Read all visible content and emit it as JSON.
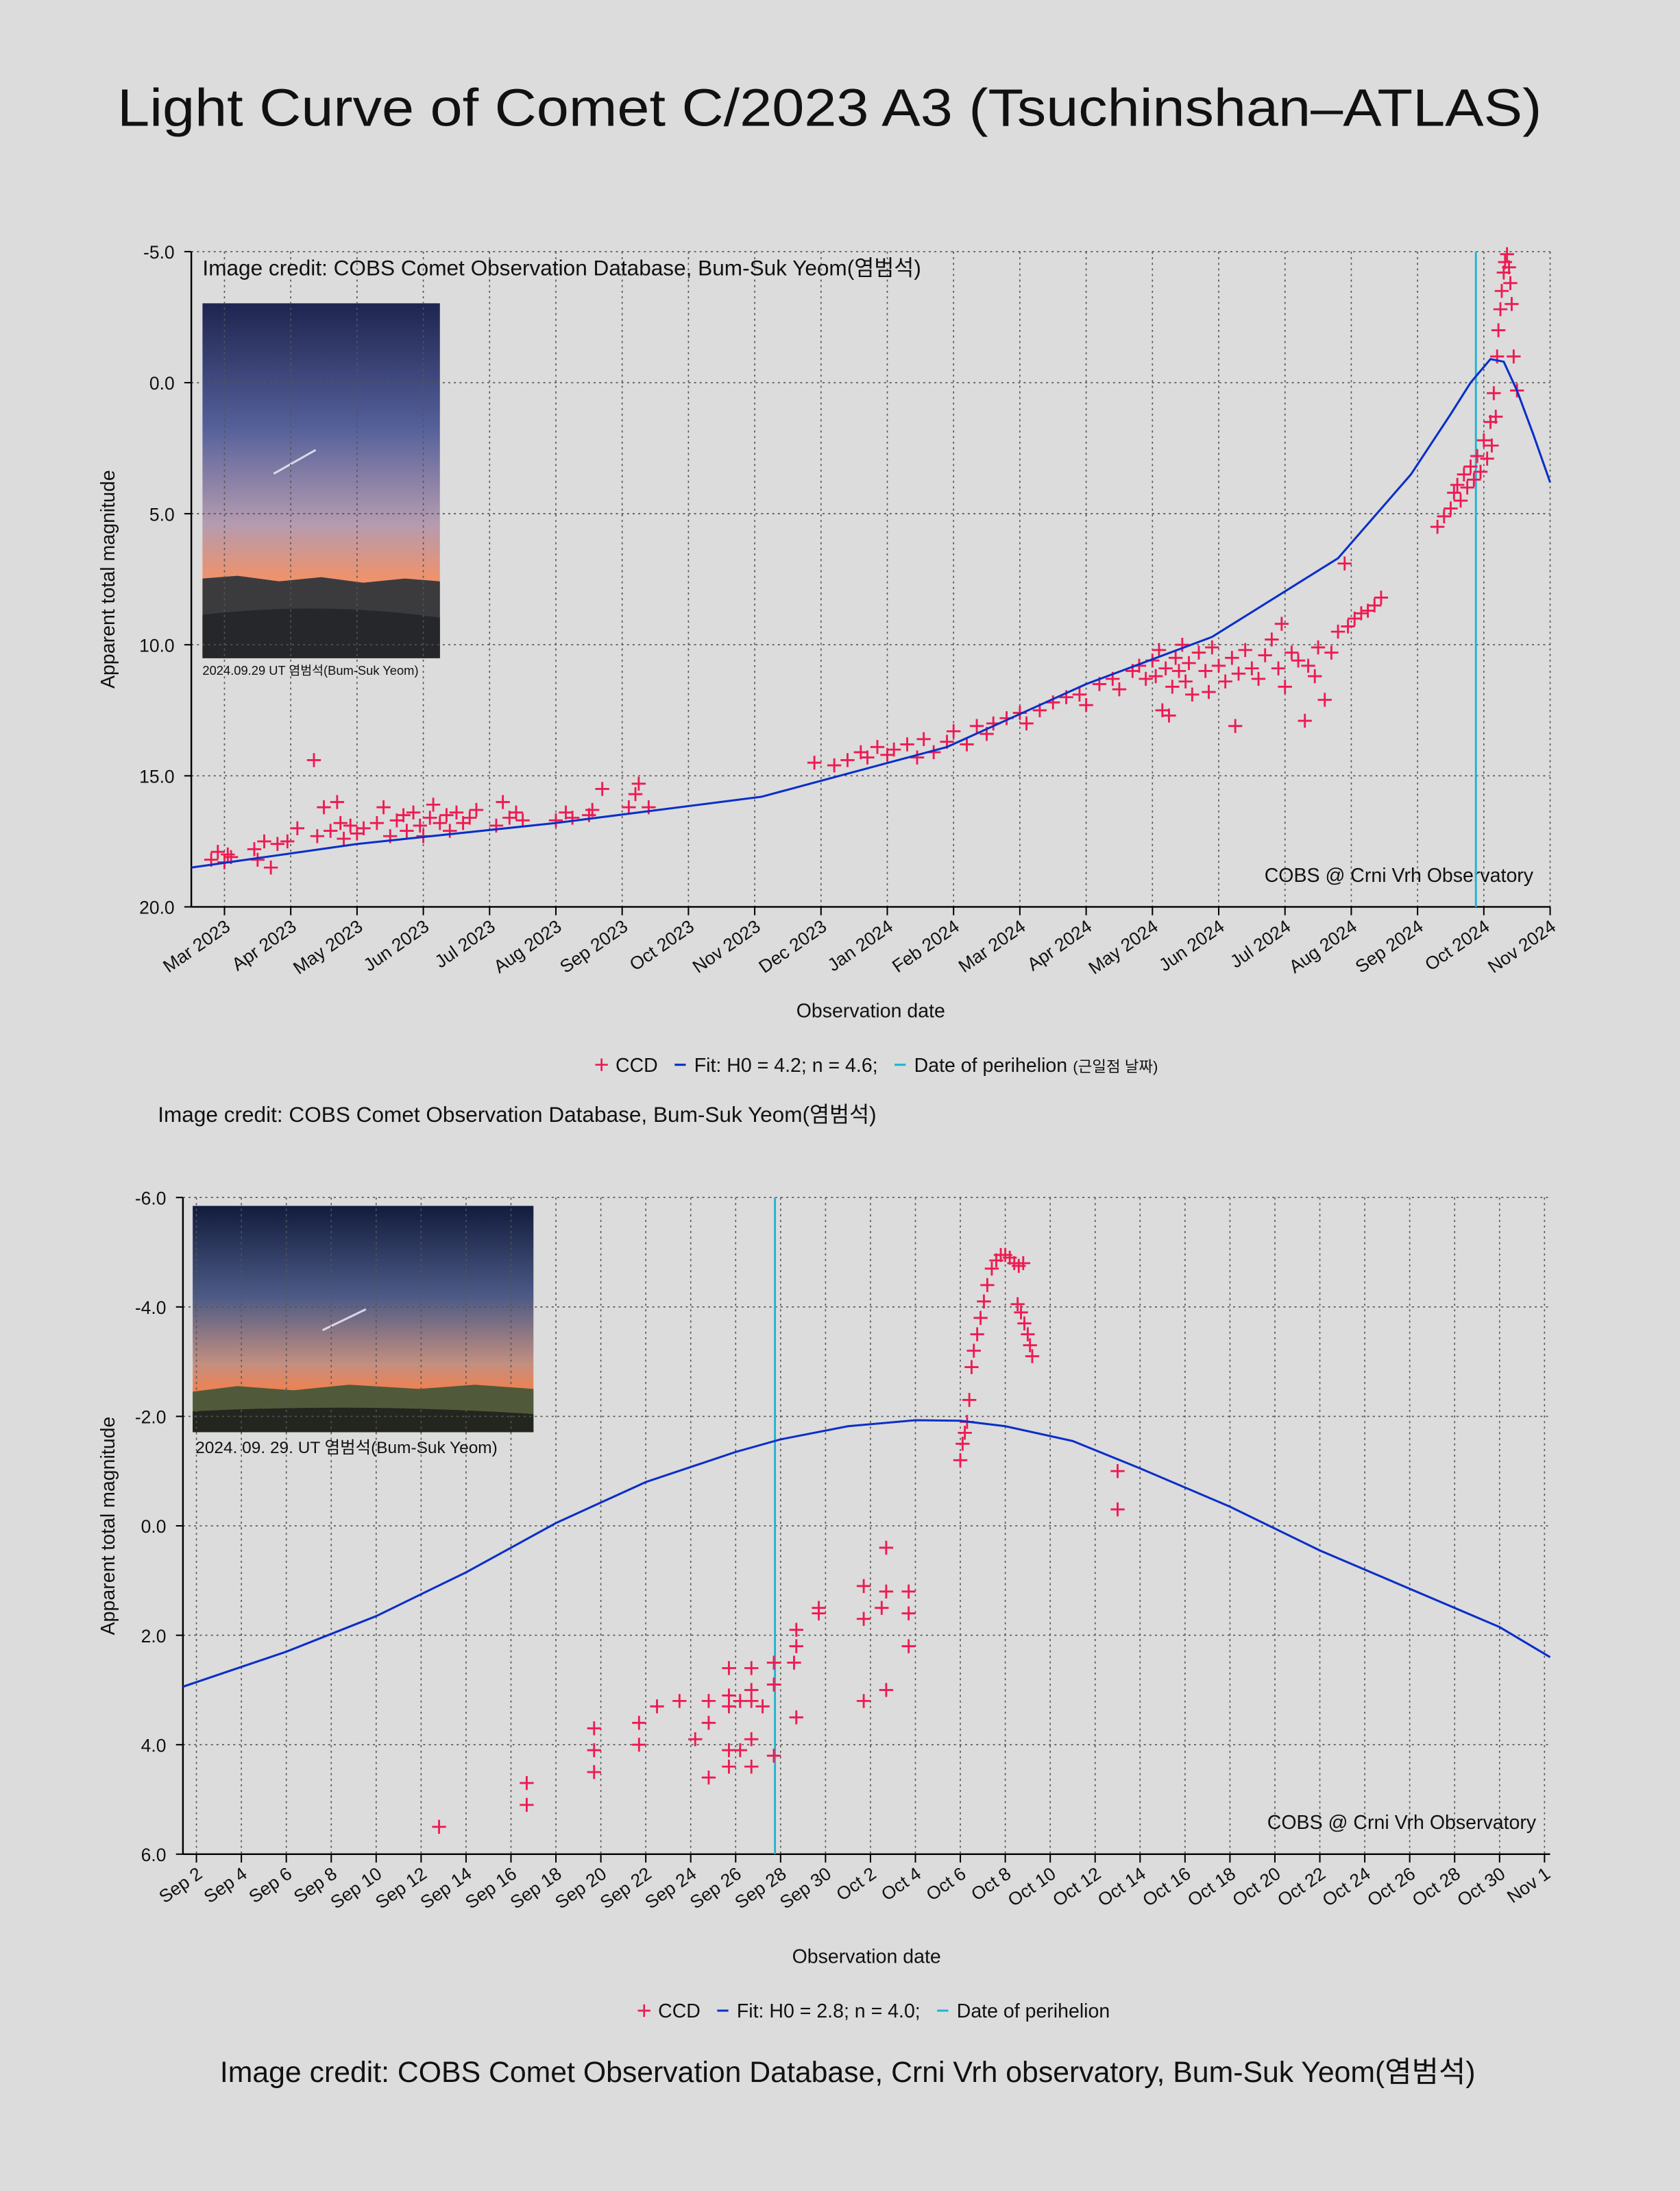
{
  "title": "Light Curve of Comet C/2023 A3 (Tsuchinshan–ATLAS)",
  "credits": [
    "Image credit: COBS Comet Observation Database, Bum-Suk Yeom(염범석)",
    "Image credit: COBS Comet Observation Database, Crni Vrh observatory, Bum-Suk Yeom(염범석)"
  ],
  "chart_data": [
    {
      "type": "scatter",
      "x_label": "Observation date",
      "y_label": "Apparent total magnitude",
      "image_credit": "Image credit: COBS Comet Observation Database, Bum-Suk Yeom(염범석)",
      "photo_caption": "2024.09.29 UT  염범석(Bum-Suk Yeom)",
      "annotation": "COBS @ Crni Vrh Observatory",
      "grid": true,
      "xlim": [
        -0.5,
        20
      ],
      "ylim": [
        20,
        -5
      ],
      "xticks": [
        {
          "value": 0,
          "label": "Mar 2023"
        },
        {
          "value": 1,
          "label": "Apr 2023"
        },
        {
          "value": 2,
          "label": "May 2023"
        },
        {
          "value": 3,
          "label": "Jun 2023"
        },
        {
          "value": 4,
          "label": "Jul 2023"
        },
        {
          "value": 5,
          "label": "Aug 2023"
        },
        {
          "value": 6,
          "label": "Sep 2023"
        },
        {
          "value": 7,
          "label": "Oct 2023"
        },
        {
          "value": 8,
          "label": "Nov 2023"
        },
        {
          "value": 9,
          "label": "Dec 2023"
        },
        {
          "value": 10,
          "label": "Jan 2024"
        },
        {
          "value": 11,
          "label": "Feb 2024"
        },
        {
          "value": 12,
          "label": "Mar 2024"
        },
        {
          "value": 13,
          "label": "Apr 2024"
        },
        {
          "value": 14,
          "label": "May 2024"
        },
        {
          "value": 15,
          "label": "Jun 2024"
        },
        {
          "value": 16,
          "label": "Jul 2024"
        },
        {
          "value": 17,
          "label": "Aug 2024"
        },
        {
          "value": 18,
          "label": "Sep 2024"
        },
        {
          "value": 19,
          "label": "Oct 2024"
        },
        {
          "value": 20,
          "label": "Nov 2024"
        }
      ],
      "yticks": [
        {
          "value": -5,
          "label": "-5.0"
        },
        {
          "value": 0,
          "label": "0.0"
        },
        {
          "value": 5,
          "label": "5.0"
        },
        {
          "value": 10,
          "label": "10.0"
        },
        {
          "value": 15,
          "label": "15.0"
        },
        {
          "value": 20,
          "label": "20.0"
        }
      ],
      "series": [
        {
          "name": "CCD",
          "color": "#ee1a52",
          "x": [
            -0.2,
            -0.1,
            0,
            0.05,
            0.1,
            0.45,
            0.5,
            0.6,
            0.7,
            0.8,
            0.95,
            1.1,
            1.35,
            1.4,
            1.5,
            1.6,
            1.7,
            1.75,
            1.8,
            1.9,
            2.0,
            2.1,
            2.3,
            2.4,
            2.5,
            2.6,
            2.7,
            2.75,
            2.85,
            2.95,
            3.0,
            3.1,
            3.15,
            3.25,
            3.35,
            3.4,
            3.5,
            3.6,
            3.7,
            3.8,
            4.1,
            4.2,
            4.3,
            4.4,
            4.5,
            5.0,
            5.15,
            5.25,
            5.5,
            5.55,
            5.7,
            6.1,
            6.2,
            6.25,
            6.4,
            8.9,
            9.2,
            9.4,
            9.6,
            9.7,
            9.85,
            10.0,
            10.1,
            10.3,
            10.45,
            10.55,
            10.7,
            10.9,
            11.0,
            11.2,
            11.35,
            11.5,
            11.6,
            11.8,
            12.0,
            12.1,
            12.3,
            12.5,
            12.7,
            12.9,
            13.0,
            13.2,
            13.4,
            13.5,
            13.7,
            13.8,
            13.9,
            14.0,
            14.05,
            14.1,
            14.15,
            14.2,
            14.25,
            14.3,
            14.35,
            14.4,
            14.45,
            14.5,
            14.55,
            14.6,
            14.7,
            14.8,
            14.85,
            14.9,
            15.0,
            15.1,
            15.2,
            15.25,
            15.3,
            15.4,
            15.5,
            15.6,
            15.7,
            15.8,
            15.9,
            15.95,
            16.0,
            16.1,
            16.2,
            16.3,
            16.35,
            16.45,
            16.5,
            16.6,
            16.7,
            16.8,
            16.9,
            16.95,
            17.05,
            17.15,
            17.25,
            17.35,
            17.45,
            18.3,
            18.4,
            18.5,
            18.55,
            18.6,
            18.65,
            18.7,
            18.75,
            18.8,
            18.85,
            18.9,
            18.95,
            19.0,
            19.05,
            19.1,
            19.12,
            19.15,
            19.18,
            19.2,
            19.22,
            19.25,
            19.27,
            19.3,
            19.32,
            19.35,
            19.38,
            19.4,
            19.42,
            19.45,
            19.5
          ],
          "values": [
            18.2,
            17.9,
            18.3,
            18.0,
            18.1,
            17.8,
            18.2,
            17.5,
            18.5,
            17.6,
            17.5,
            17.0,
            14.4,
            17.3,
            16.2,
            17.1,
            16.0,
            16.8,
            17.4,
            16.9,
            17.2,
            17.0,
            16.8,
            16.2,
            17.3,
            16.7,
            16.5,
            17.1,
            16.4,
            16.9,
            17.3,
            16.6,
            16.1,
            16.8,
            16.5,
            17.1,
            16.4,
            16.8,
            16.6,
            16.3,
            16.9,
            16.0,
            16.6,
            16.4,
            16.7,
            16.7,
            16.4,
            16.6,
            16.5,
            16.3,
            15.5,
            16.2,
            15.7,
            15.3,
            16.2,
            14.5,
            14.6,
            14.4,
            14.1,
            14.3,
            13.9,
            14.2,
            14.0,
            13.8,
            14.3,
            13.6,
            14.1,
            13.7,
            13.3,
            13.8,
            13.1,
            13.4,
            13.0,
            12.8,
            12.6,
            13.0,
            12.5,
            12.2,
            12.0,
            11.9,
            12.3,
            11.5,
            11.3,
            11.7,
            11.0,
            10.8,
            11.3,
            10.6,
            11.2,
            10.2,
            12.5,
            10.9,
            12.7,
            11.6,
            10.5,
            11.0,
            10.0,
            11.4,
            10.7,
            11.9,
            10.3,
            11.0,
            11.8,
            10.1,
            10.8,
            11.4,
            10.5,
            13.1,
            11.1,
            10.2,
            10.9,
            11.3,
            10.4,
            9.8,
            10.9,
            9.2,
            11.6,
            10.3,
            10.6,
            12.9,
            10.8,
            11.2,
            10.1,
            12.1,
            10.3,
            9.5,
            6.9,
            9.3,
            9.0,
            8.8,
            8.7,
            8.5,
            8.2,
            5.5,
            5.1,
            4.8,
            4.2,
            3.9,
            4.5,
            3.5,
            4.0,
            3.2,
            3.7,
            2.8,
            3.4,
            2.2,
            2.9,
            1.5,
            2.4,
            0.4,
            1.3,
            -1.0,
            -2.0,
            -2.8,
            -3.5,
            -4.2,
            -4.6,
            -4.9,
            -4.4,
            -3.8,
            -3.0,
            -1.0,
            0.3
          ]
        },
        {
          "name": "Fit: H0 = 4.2; n = 4.6;",
          "color": "#0a2fc8",
          "type": "line",
          "x": [
            -0.5,
            2,
            5,
            8.1,
            10.9,
            13,
            14.9,
            16.8,
            17.9,
            18.5,
            18.8,
            19.1,
            19.3,
            19.5,
            19.75,
            20
          ],
          "values": [
            18.5,
            17.6,
            16.8,
            15.8,
            13.9,
            11.5,
            9.7,
            6.7,
            3.5,
            1.2,
            0.0,
            -0.9,
            -0.8,
            0.3,
            2.0,
            3.8
          ]
        }
      ],
      "perihelion": {
        "name": "Date of perihelion",
        "note": "(근일점 날짜)",
        "color": "#1cb4d4",
        "x": 18.88
      }
    },
    {
      "type": "scatter",
      "x_label": "Observation date",
      "y_label": "Apparent total magnitude",
      "photo_caption": "2024. 09. 29. UT     염범석(Bum-Suk Yeom)",
      "annotation": "COBS @ Crni Vrh Observatory",
      "grid": true,
      "xlim": [
        1.4,
        62.25
      ],
      "ylim": [
        6,
        -6
      ],
      "xticks": [
        {
          "value": 2,
          "label": "Sep 2"
        },
        {
          "value": 4,
          "label": "Sep 4"
        },
        {
          "value": 6,
          "label": "Sep 6"
        },
        {
          "value": 8,
          "label": "Sep 8"
        },
        {
          "value": 10,
          "label": "Sep 10"
        },
        {
          "value": 12,
          "label": "Sep 12"
        },
        {
          "value": 14,
          "label": "Sep 14"
        },
        {
          "value": 16,
          "label": "Sep 16"
        },
        {
          "value": 18,
          "label": "Sep 18"
        },
        {
          "value": 20,
          "label": "Sep 20"
        },
        {
          "value": 22,
          "label": "Sep 22"
        },
        {
          "value": 24,
          "label": "Sep 24"
        },
        {
          "value": 26,
          "label": "Sep 26"
        },
        {
          "value": 28,
          "label": "Sep 28"
        },
        {
          "value": 30,
          "label": "Sep 30"
        },
        {
          "value": 32,
          "label": "Oct 2"
        },
        {
          "value": 34,
          "label": "Oct 4"
        },
        {
          "value": 36,
          "label": "Oct 6"
        },
        {
          "value": 38,
          "label": "Oct 8"
        },
        {
          "value": 40,
          "label": "Oct 10"
        },
        {
          "value": 42,
          "label": "Oct 12"
        },
        {
          "value": 44,
          "label": "Oct 14"
        },
        {
          "value": 46,
          "label": "Oct 16"
        },
        {
          "value": 48,
          "label": "Oct 18"
        },
        {
          "value": 50,
          "label": "Oct 20"
        },
        {
          "value": 52,
          "label": "Oct 22"
        },
        {
          "value": 54,
          "label": "Oct 24"
        },
        {
          "value": 56,
          "label": "Oct 26"
        },
        {
          "value": 58,
          "label": "Oct 28"
        },
        {
          "value": 60,
          "label": "Oct 30"
        },
        {
          "value": 62,
          "label": "Nov 1"
        }
      ],
      "yticks": [
        {
          "value": -6,
          "label": "-6.0"
        },
        {
          "value": -4,
          "label": "-4.0"
        },
        {
          "value": -2,
          "label": "-2.0"
        },
        {
          "value": 0,
          "label": "0.0"
        },
        {
          "value": 2,
          "label": "2.0"
        },
        {
          "value": 4,
          "label": "4.0"
        },
        {
          "value": 6,
          "label": "6.0"
        }
      ],
      "series": [
        {
          "name": "CCD",
          "color": "#ee1a52",
          "x": [
            12.8,
            16.7,
            16.7,
            19.7,
            19.7,
            19.7,
            21.7,
            21.7,
            22.5,
            23.5,
            24.2,
            24.8,
            24.8,
            24.8,
            25.7,
            25.7,
            25.7,
            25.7,
            25.7,
            26.2,
            26.2,
            26.7,
            26.7,
            26.7,
            26.7,
            26.7,
            27.2,
            27.7,
            27.7,
            27.7,
            28.6,
            28.7,
            28.7,
            28.7,
            29.7,
            29.7,
            31.7,
            31.7,
            31.7,
            32.5,
            32.7,
            32.7,
            32.7,
            33.7,
            33.7,
            33.7,
            36.0,
            36.1,
            36.2,
            36.3,
            36.4,
            36.5,
            36.6,
            36.75,
            36.9,
            37.05,
            37.2,
            37.4,
            37.6,
            37.8,
            38.0,
            38.2,
            38.4,
            38.6,
            38.8,
            38.55,
            38.7,
            38.85,
            39.0,
            39.1,
            39.2,
            43.0,
            43.0
          ],
          "values": [
            5.5,
            4.7,
            5.1,
            3.7,
            4.1,
            4.5,
            3.6,
            4.0,
            3.3,
            3.2,
            3.9,
            3.2,
            3.6,
            4.6,
            2.6,
            3.1,
            3.3,
            4.4,
            4.1,
            3.2,
            4.1,
            2.6,
            3.0,
            3.2,
            4.4,
            3.9,
            3.3,
            2.5,
            2.9,
            4.2,
            2.5,
            1.9,
            2.2,
            3.5,
            1.5,
            1.6,
            1.1,
            1.7,
            3.2,
            1.5,
            0.4,
            1.2,
            3.0,
            1.2,
            1.6,
            2.2,
            -1.2,
            -1.5,
            -1.7,
            -1.9,
            -2.3,
            -2.9,
            -3.2,
            -3.5,
            -3.8,
            -4.1,
            -4.4,
            -4.7,
            -4.85,
            -4.95,
            -4.95,
            -4.9,
            -4.8,
            -4.75,
            -4.8,
            -4.05,
            -3.9,
            -3.7,
            -3.5,
            -3.3,
            -3.1,
            -1.0,
            -0.3
          ]
        },
        {
          "name": "Fit: H0 = 2.8; n = 4.0;",
          "color": "#0a2fc8",
          "type": "line",
          "x": [
            1.4,
            6,
            10,
            14,
            18,
            22,
            26,
            28,
            31,
            34,
            36,
            38,
            41,
            44,
            48,
            52,
            56,
            60,
            62.25
          ],
          "values": [
            2.94,
            2.3,
            1.65,
            0.85,
            -0.05,
            -0.8,
            -1.35,
            -1.58,
            -1.82,
            -1.93,
            -1.92,
            -1.82,
            -1.55,
            -1.05,
            -0.35,
            0.45,
            1.15,
            1.85,
            2.4
          ]
        }
      ],
      "perihelion": {
        "name": "Date of perihelion",
        "color": "#1cb4d4",
        "x": 27.75
      }
    }
  ]
}
